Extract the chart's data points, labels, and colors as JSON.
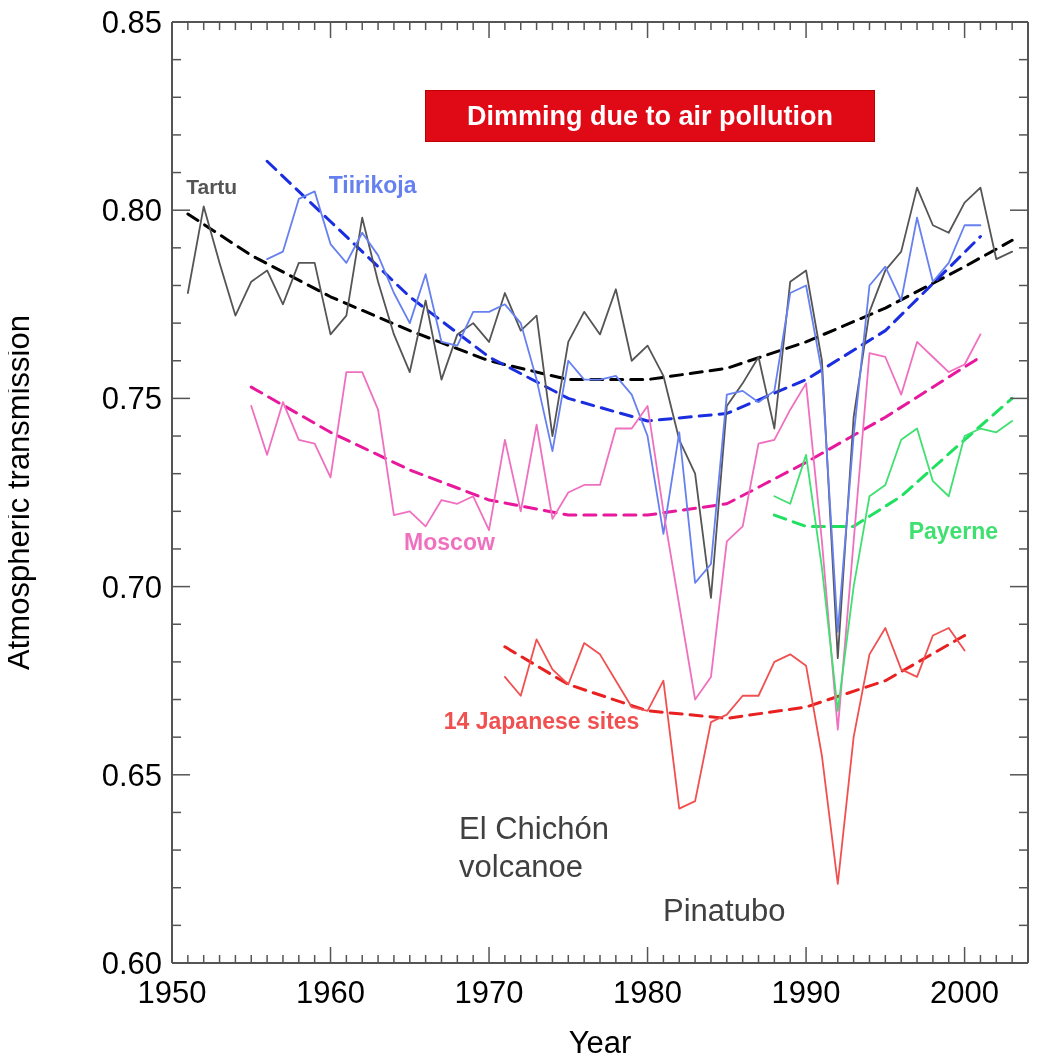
{
  "chart_data": {
    "type": "line",
    "xlabel": "Year",
    "ylabel": "Atmospheric transmission",
    "annotations": [
      "Dimming due to air pollution",
      "El Chichón volcanoe",
      "Pinatubo"
    ],
    "xlim": [
      1950,
      2004
    ],
    "ylim": [
      0.6,
      0.85
    ],
    "xticks": [
      1950,
      {
        "value": 1951,
        "label": null
      },
      {
        "value": 1952,
        "label": null
      },
      {
        "value": 1953,
        "label": null
      },
      {
        "value": 1954,
        "label": null
      },
      {
        "value": 1955,
        "label": null
      },
      {
        "value": 1956,
        "label": null
      },
      {
        "value": 1957,
        "label": null
      },
      {
        "value": 1958,
        "label": null
      },
      {
        "value": 1959,
        "label": null
      },
      1960,
      {
        "value": 1961,
        "label": null
      },
      {
        "value": 1962,
        "label": null
      },
      {
        "value": 1963,
        "label": null
      },
      {
        "value": 1964,
        "label": null
      },
      {
        "value": 1965,
        "label": null
      },
      {
        "value": 1966,
        "label": null
      },
      {
        "value": 1967,
        "label": null
      },
      {
        "value": 1968,
        "label": null
      },
      {
        "value": 1969,
        "label": null
      },
      1970,
      {
        "value": 1971,
        "label": null
      },
      {
        "value": 1972,
        "label": null
      },
      {
        "value": 1973,
        "label": null
      },
      {
        "value": 1974,
        "label": null
      },
      {
        "value": 1975,
        "label": null
      },
      {
        "value": 1976,
        "label": null
      },
      {
        "value": 1977,
        "label": null
      },
      {
        "value": 1978,
        "label": null
      },
      {
        "value": 1979,
        "label": null
      },
      1980,
      {
        "value": 1981,
        "label": null
      },
      {
        "value": 1982,
        "label": null
      },
      {
        "value": 1983,
        "label": null
      },
      {
        "value": 1984,
        "label": null
      },
      {
        "value": 1985,
        "label": null
      },
      {
        "value": 1986,
        "label": null
      },
      {
        "value": 1987,
        "label": null
      },
      {
        "value": 1988,
        "label": null
      },
      {
        "value": 1989,
        "label": null
      },
      1990,
      {
        "value": 1991,
        "label": null
      },
      {
        "value": 1992,
        "label": null
      },
      {
        "value": 1993,
        "label": null
      },
      {
        "value": 1994,
        "label": null
      },
      {
        "value": 1995,
        "label": null
      },
      {
        "value": 1996,
        "label": null
      },
      {
        "value": 1997,
        "label": null
      },
      {
        "value": 1998,
        "label": null
      },
      {
        "value": 1999,
        "label": null
      },
      2000,
      {
        "value": 2001,
        "label": null
      },
      {
        "value": 2002,
        "label": null
      },
      {
        "value": 2003,
        "label": null
      }
    ],
    "yticks": [
      {
        "value": 0.6,
        "label": "0.60"
      },
      {
        "value": 0.61,
        "label": null
      },
      {
        "value": 0.62,
        "label": null
      },
      {
        "value": 0.63,
        "label": null
      },
      {
        "value": 0.64,
        "label": null
      },
      0.65,
      {
        "value": 0.66,
        "label": null
      },
      {
        "value": 0.67,
        "label": null
      },
      {
        "value": 0.68,
        "label": null
      },
      {
        "value": 0.69,
        "label": null
      },
      {
        "value": 0.7,
        "label": "0.70"
      },
      {
        "value": 0.71,
        "label": null
      },
      {
        "value": 0.72,
        "label": null
      },
      {
        "value": 0.73,
        "label": null
      },
      {
        "value": 0.74,
        "label": null
      },
      0.75,
      {
        "value": 0.76,
        "label": null
      },
      {
        "value": 0.77,
        "label": null
      },
      {
        "value": 0.78,
        "label": null
      },
      {
        "value": 0.79,
        "label": null
      },
      {
        "value": 0.8,
        "label": "0.80"
      },
      {
        "value": 0.81,
        "label": null
      },
      {
        "value": 0.82,
        "label": null
      },
      {
        "value": 0.83,
        "label": null
      },
      {
        "value": 0.84,
        "label": null
      },
      0.85
    ],
    "series": [
      {
        "name": "Tartu",
        "color": "#555555",
        "line_style": "solid",
        "x": [
          1951,
          1952,
          1953,
          1954,
          1955,
          1956,
          1957,
          1958,
          1959,
          1960,
          1961,
          1962,
          1963,
          1964,
          1965,
          1966,
          1967,
          1968,
          1969,
          1970,
          1971,
          1972,
          1973,
          1974,
          1975,
          1976,
          1977,
          1978,
          1979,
          1980,
          1981,
          1982,
          1983,
          1984,
          1985,
          1986,
          1987,
          1988,
          1989,
          1990,
          1991,
          1992,
          1993,
          1994,
          1995,
          1996,
          1997,
          1998,
          1999,
          2000,
          2001,
          2002,
          2003
        ],
        "values": [
          0.778,
          0.801,
          0.786,
          0.772,
          0.781,
          0.784,
          0.775,
          0.786,
          0.786,
          0.767,
          0.772,
          0.798,
          0.781,
          0.767,
          0.757,
          0.776,
          0.755,
          0.767,
          0.77,
          0.765,
          0.778,
          0.768,
          0.772,
          0.74,
          0.765,
          0.773,
          0.767,
          0.779,
          0.76,
          0.764,
          0.756,
          0.739,
          0.73,
          0.697,
          0.748,
          0.754,
          0.761,
          0.742,
          0.781,
          0.784,
          0.76,
          0.681,
          0.745,
          0.773,
          0.784,
          0.789,
          0.806,
          0.796,
          0.794,
          0.802,
          0.806,
          0.787,
          0.789
        ]
      },
      {
        "name": "Tiirikoja",
        "color": "#6680f0",
        "line_style": "solid",
        "x": [
          1956,
          1957,
          1958,
          1959,
          1960,
          1961,
          1962,
          1963,
          1964,
          1965,
          1966,
          1967,
          1968,
          1969,
          1970,
          1971,
          1972,
          1973,
          1974,
          1975,
          1976,
          1977,
          1978,
          1979,
          1980,
          1981,
          1982,
          1983,
          1984,
          1985,
          1986,
          1987,
          1988,
          1989,
          1990,
          1991,
          1992,
          1993,
          1994,
          1995,
          1996,
          1997,
          1998,
          1999,
          2000,
          2001
        ],
        "values": [
          0.787,
          0.789,
          0.803,
          0.805,
          0.791,
          0.786,
          0.794,
          0.788,
          0.778,
          0.77,
          0.783,
          0.765,
          0.764,
          0.773,
          0.773,
          0.775,
          0.77,
          0.755,
          0.736,
          0.76,
          0.755,
          0.755,
          0.756,
          0.751,
          0.74,
          0.714,
          0.741,
          0.701,
          0.706,
          0.751,
          0.752,
          0.749,
          0.752,
          0.778,
          0.78,
          0.757,
          0.688,
          0.74,
          0.78,
          0.785,
          0.776,
          0.798,
          0.781,
          0.786,
          0.796,
          0.796
        ]
      },
      {
        "name": "Moscow",
        "color": "#f070c0",
        "line_style": "solid",
        "x": [
          1955,
          1956,
          1957,
          1958,
          1959,
          1960,
          1961,
          1962,
          1963,
          1964,
          1965,
          1966,
          1967,
          1968,
          1969,
          1970,
          1971,
          1972,
          1973,
          1974,
          1975,
          1976,
          1977,
          1978,
          1979,
          1980,
          1981,
          1982,
          1983,
          1984,
          1985,
          1986,
          1987,
          1988,
          1989,
          1990,
          1991,
          1992,
          1993,
          1994,
          1995,
          1996,
          1997,
          1998,
          1999,
          2000,
          2001
        ],
        "values": [
          0.748,
          0.735,
          0.749,
          0.739,
          0.738,
          0.729,
          0.757,
          0.757,
          0.747,
          0.719,
          0.72,
          0.716,
          0.723,
          0.722,
          0.724,
          0.715,
          0.739,
          0.72,
          0.743,
          0.718,
          0.725,
          0.727,
          0.727,
          0.742,
          0.742,
          0.748,
          0.72,
          0.695,
          0.67,
          0.676,
          0.712,
          0.716,
          0.738,
          0.739,
          0.747,
          0.754,
          0.712,
          0.662,
          0.712,
          0.762,
          0.761,
          0.751,
          0.765,
          0.761,
          0.757,
          0.759,
          0.767
        ]
      },
      {
        "name": "Payerne",
        "color": "#40e070",
        "line_style": "solid",
        "x": [
          1988,
          1989,
          1990,
          1991,
          1992,
          1993,
          1994,
          1995,
          1996,
          1997,
          1998,
          1999,
          2000,
          2001,
          2002,
          2003
        ],
        "values": [
          0.724,
          0.722,
          0.735,
          0.705,
          0.667,
          0.7,
          0.724,
          0.727,
          0.739,
          0.742,
          0.728,
          0.724,
          0.74,
          0.742,
          0.741,
          0.744
        ]
      },
      {
        "name": "14 Japanese sites",
        "color": "#f05050",
        "line_style": "solid",
        "x": [
          1971,
          1972,
          1973,
          1974,
          1975,
          1976,
          1977,
          1978,
          1979,
          1980,
          1981,
          1982,
          1983,
          1984,
          1985,
          1986,
          1987,
          1988,
          1989,
          1990,
          1991,
          1992,
          1993,
          1994,
          1995,
          1996,
          1997,
          1998,
          1999,
          2000
        ],
        "values": [
          0.676,
          0.671,
          0.686,
          0.678,
          0.674,
          0.685,
          0.682,
          0.675,
          0.668,
          0.667,
          0.675,
          0.641,
          0.643,
          0.664,
          0.666,
          0.671,
          0.671,
          0.68,
          0.682,
          0.679,
          0.655,
          0.621,
          0.66,
          0.682,
          0.689,
          0.678,
          0.676,
          0.687,
          0.689,
          0.683
        ]
      },
      {
        "color": "#000000",
        "line_style": "dashed",
        "x": [
          1951,
          1955,
          1960,
          1965,
          1970,
          1975,
          1980,
          1985,
          1990,
          1995,
          2000,
          2003
        ],
        "values": [
          0.799,
          0.788,
          0.777,
          0.768,
          0.76,
          0.755,
          0.755,
          0.758,
          0.765,
          0.774,
          0.785,
          0.792
        ]
      },
      {
        "color": "#1a2ee0",
        "line_style": "dashed",
        "x": [
          1956,
          1960,
          1965,
          1970,
          1975,
          1980,
          1985,
          1990,
          1995,
          2001
        ],
        "values": [
          0.813,
          0.797,
          0.777,
          0.761,
          0.75,
          0.744,
          0.746,
          0.755,
          0.768,
          0.793
        ]
      },
      {
        "color": "#e8189c",
        "line_style": "dashed",
        "x": [
          1955,
          1960,
          1965,
          1970,
          1975,
          1980,
          1985,
          1990,
          1995,
          2001
        ],
        "values": [
          0.753,
          0.741,
          0.731,
          0.723,
          0.719,
          0.719,
          0.722,
          0.733,
          0.745,
          0.761
        ]
      },
      {
        "color": "#20e060",
        "line_style": "dashed",
        "x": [
          1988,
          1990,
          1993,
          1996,
          2000,
          2003
        ],
        "values": [
          0.719,
          0.716,
          0.716,
          0.724,
          0.739,
          0.75
        ]
      },
      {
        "color": "#e82020",
        "line_style": "dashed",
        "x": [
          1971,
          1975,
          1980,
          1985,
          1990,
          1995,
          2000
        ],
        "values": [
          0.684,
          0.674,
          0.667,
          0.665,
          0.668,
          0.675,
          0.687
        ]
      }
    ]
  }
}
